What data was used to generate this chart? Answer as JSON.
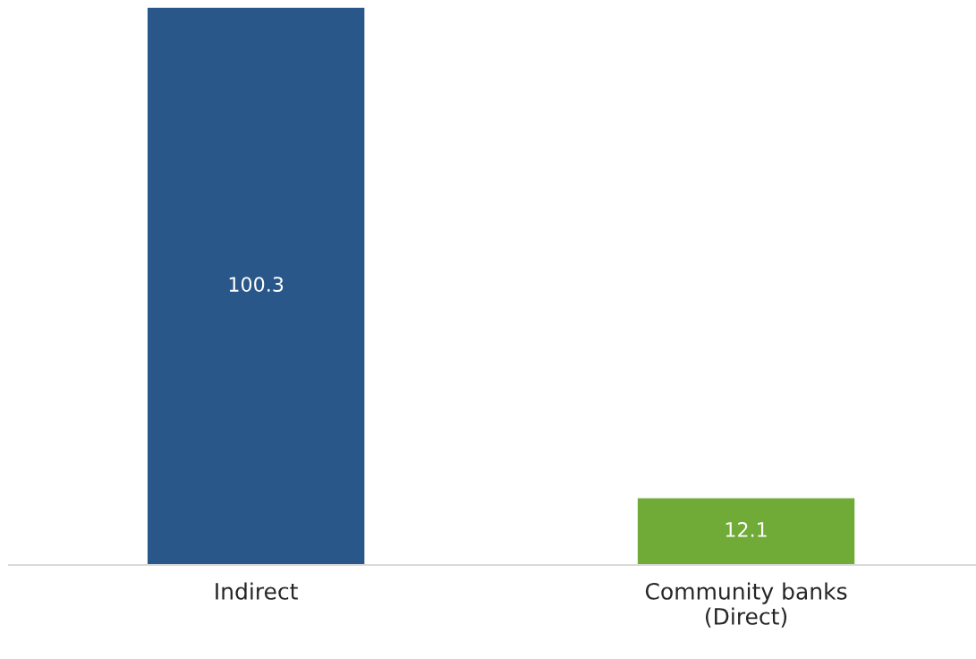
{
  "chart_data": {
    "type": "bar",
    "categories": [
      "Indirect",
      "Community banks\n(Direct)"
    ],
    "values": [
      100.3,
      12.1
    ],
    "colors": [
      "#2a5789",
      "#70ab38"
    ],
    "data_labels": true,
    "grid": false,
    "legend": false
  }
}
